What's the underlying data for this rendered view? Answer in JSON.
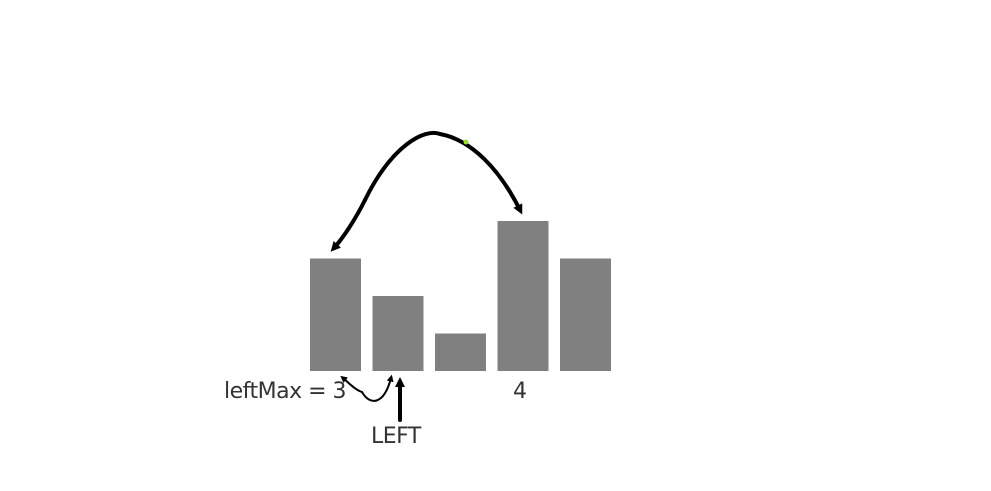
{
  "diagram": {
    "bars": [
      {
        "height": 3
      },
      {
        "height": 2
      },
      {
        "height": 1
      },
      {
        "height": 4
      },
      {
        "height": 3
      }
    ],
    "left_max_text": "leftMax = 3",
    "value_text": "4",
    "pointer_text": "LEFT",
    "colors": {
      "bar": "#808080",
      "arrow": "#000000",
      "text": "#333333",
      "dot": "#9adf2a"
    }
  }
}
